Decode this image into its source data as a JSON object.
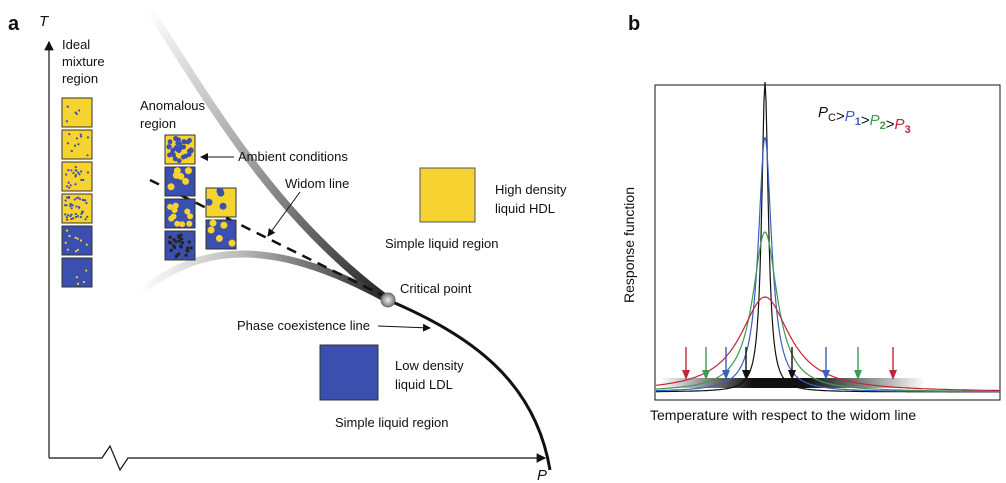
{
  "panel_a": {
    "label": "a",
    "y_axis": "T",
    "x_axis": "P",
    "ideal_region": [
      "Ideal",
      "mixture",
      "region"
    ],
    "anomalous_region": [
      "Anomalous",
      "region"
    ],
    "ambient": "Ambient conditions",
    "widom": "Widom line",
    "hdl": [
      "High density",
      "liquid HDL"
    ],
    "simple_liquid_upper": "Simple liquid region",
    "critical_point": "Critical point",
    "coexistence": "Phase coexistence line",
    "ldl": [
      "Low density",
      "liquid LDL"
    ],
    "simple_liquid_lower": "Simple liquid region"
  },
  "panel_b": {
    "label": "b",
    "legend": [
      {
        "symbol": "P",
        "sub": "C",
        "color": "#111111"
      },
      {
        "symbol": "P",
        "sub": "1",
        "color": "#3b5fc0"
      },
      {
        "symbol": "P",
        "sub": "2",
        "color": "#3f9a4f"
      },
      {
        "symbol": "P",
        "sub": "3",
        "color": "#c0263a"
      }
    ],
    "separator": ">",
    "y_axis": "Response function",
    "x_axis": "Temperature with respect to the widom line"
  }
}
